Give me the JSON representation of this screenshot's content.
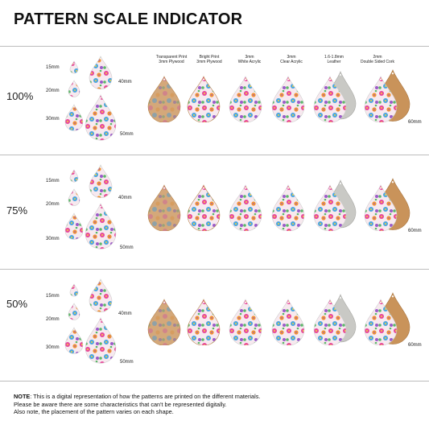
{
  "title": "PATTERN SCALE INDICATOR",
  "scales": [
    {
      "label": "100%",
      "sizes": [
        "15mm",
        "20mm",
        "30mm",
        "40mm",
        "50mm"
      ],
      "big_size": "60mm"
    },
    {
      "label": "75%",
      "sizes": [
        "15mm",
        "20mm",
        "30mm",
        "40mm",
        "50mm"
      ],
      "big_size": "60mm"
    },
    {
      "label": "50%",
      "sizes": [
        "15mm",
        "20mm",
        "30mm",
        "40mm",
        "50mm"
      ],
      "big_size": "60mm"
    }
  ],
  "materials": [
    {
      "line1": "Transparent Print",
      "line2": "3mm Plywood"
    },
    {
      "line1": "Bright Print",
      "line2": "3mm Plywood"
    },
    {
      "line1": "3mm",
      "line2": "White Acrylic"
    },
    {
      "line1": "3mm",
      "line2": "Clear Acrylic"
    },
    {
      "line1": "1.6-1.8mm",
      "line2": "Leather"
    },
    {
      "line1": "2mm",
      "line2": "Double Sided Cork"
    }
  ],
  "note": {
    "label": "NOTE",
    "line1": ": This is a digital representation of how the patterns are printed on the different materials.",
    "line2": "Please be aware there are some characteristics that can't be represented digitally.",
    "line3": "Also note, the placement of the pattern varies on each shape."
  },
  "colors": {
    "pink": "#e8479b",
    "orange": "#f2932f",
    "yellow": "#f4d23c",
    "blue": "#4aa6e0",
    "green": "#5cb86a",
    "purple": "#9b5bc9",
    "cork": "#c9935a",
    "leather": "#c9c9c5"
  }
}
